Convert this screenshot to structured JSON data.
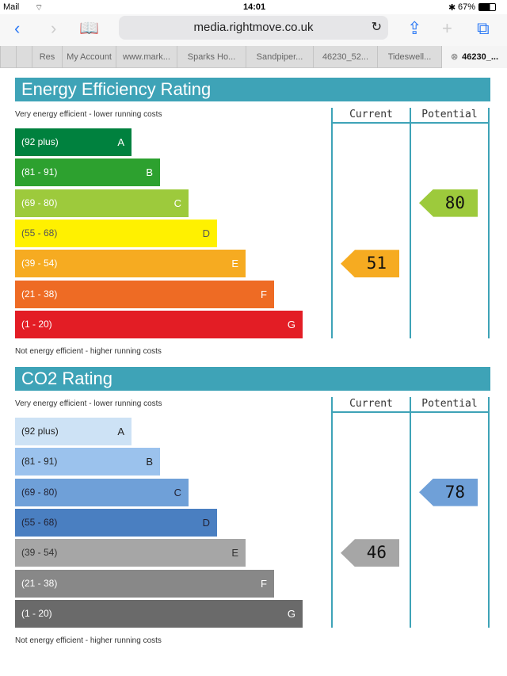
{
  "status": {
    "back_app": "Mail",
    "time": "14:01",
    "battery": "67%"
  },
  "browser": {
    "url": "media.rightmove.co.uk",
    "tabs": [
      "Res",
      "My Account",
      "www.mark...",
      "Sparks Ho...",
      "Sandpiper...",
      "46230_52...",
      "Tideswell...",
      "46230_..."
    ]
  },
  "sections": [
    {
      "title": "Energy Efficiency Rating",
      "top_note": "Very energy efficient - lower running costs",
      "bottom_note": "Not energy efficient - higher running costs",
      "col_current": "Current",
      "col_potential": "Potential",
      "bands": [
        {
          "range": "(92 plus)",
          "letter": "A",
          "color": "#00813e",
          "text": "#fff"
        },
        {
          "range": "(81 - 91)",
          "letter": "B",
          "color": "#2da12f",
          "text": "#fff"
        },
        {
          "range": "(69 - 80)",
          "letter": "C",
          "color": "#9dca3c",
          "text": "#fff"
        },
        {
          "range": "(55 - 68)",
          "letter": "D",
          "color": "#fff100",
          "text": "#555"
        },
        {
          "range": "(39 - 54)",
          "letter": "E",
          "color": "#f6ab21",
          "text": "#fff"
        },
        {
          "range": "(21 - 38)",
          "letter": "F",
          "color": "#ee6b24",
          "text": "#fff"
        },
        {
          "range": "(1 - 20)",
          "letter": "G",
          "color": "#e31d25",
          "text": "#fff"
        }
      ],
      "current": {
        "value": "51",
        "band": 4,
        "color": "#f6ab21"
      },
      "potential": {
        "value": "80",
        "band": 2,
        "color": "#9dca3c"
      }
    },
    {
      "title": "CO2 Rating",
      "top_note": "Very energy efficient - lower running costs",
      "bottom_note": "Not energy efficient - higher running costs",
      "col_current": "Current",
      "col_potential": "Potential",
      "bands": [
        {
          "range": "(92 plus)",
          "letter": "A",
          "color": "#cde2f5",
          "text": "#222"
        },
        {
          "range": "(81 - 91)",
          "letter": "B",
          "color": "#9bc2ed",
          "text": "#222"
        },
        {
          "range": "(69 - 80)",
          "letter": "C",
          "color": "#6fa0d8",
          "text": "#223"
        },
        {
          "range": "(55 - 68)",
          "letter": "D",
          "color": "#4a7fc1",
          "text": "#223"
        },
        {
          "range": "(39 - 54)",
          "letter": "E",
          "color": "#a6a6a6",
          "text": "#333"
        },
        {
          "range": "(21 - 38)",
          "letter": "F",
          "color": "#888888",
          "text": "#fff"
        },
        {
          "range": "(1 - 20)",
          "letter": "G",
          "color": "#6a6a6a",
          "text": "#fff"
        }
      ],
      "current": {
        "value": "46",
        "band": 4,
        "color": "#a6a6a6"
      },
      "potential": {
        "value": "78",
        "band": 2,
        "color": "#6fa0d8"
      }
    }
  ]
}
